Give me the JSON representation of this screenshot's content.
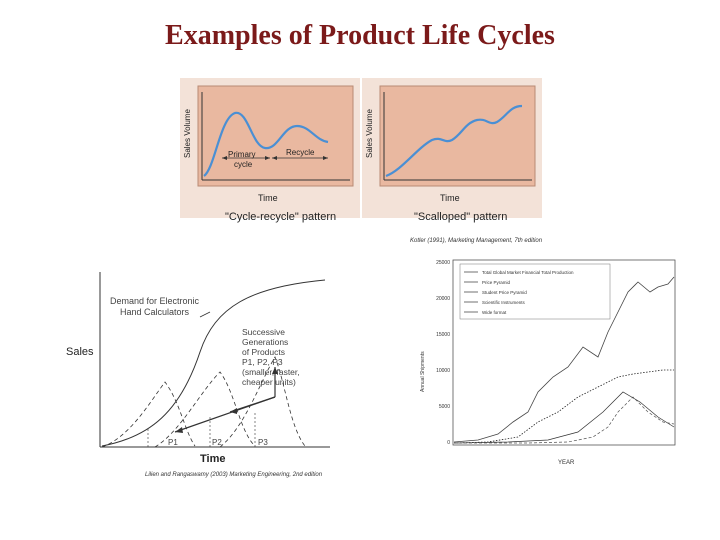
{
  "title": "Examples of Product Life Cycles",
  "top_left": {
    "y_label": "Sales Volume",
    "x_label": "Time",
    "annotation_primary_line1": "Primary",
    "annotation_primary_line2": "cycle",
    "annotation_recycle": "Recycle",
    "caption": "\"Cycle-recycle\" pattern"
  },
  "top_right": {
    "y_label": "Sales Volume",
    "x_label": "Time",
    "caption": "\"Scalloped\" pattern"
  },
  "kotler_credit": "Kotler (1991), Marketing Management, 7th edition",
  "bottom_left": {
    "y_label": "Sales",
    "x_label": "Time",
    "demand_line1": "Demand for Electronic",
    "demand_line2": "Hand Calculators",
    "succ_line1": "Successive",
    "succ_line2": "Generations",
    "succ_line3": "of Products",
    "succ_line4": "P1, P2, P3",
    "succ_line5": "(smaller, faster,",
    "succ_line6": "cheaper units)",
    "p1": "P1",
    "p2": "P2",
    "p3": "P3",
    "credit": "Lilien and Rangaswamy (2003) Marketing Engineering, 2nd edition"
  },
  "bottom_right": {
    "y_ticks": [
      "25000",
      "20000",
      "15000",
      "10000",
      "5000",
      "0"
    ],
    "legend": [
      "Total Global Market Financial Total Production",
      "Price Pyramid",
      "Student Price Pyramid",
      "Scientific Instruments",
      "Wide format"
    ],
    "x_axis_title": "YEAR"
  },
  "colors": {
    "title": "#7b1a1a",
    "panel_bg": "#e9b8a0",
    "curve": "#4a8fd4"
  }
}
